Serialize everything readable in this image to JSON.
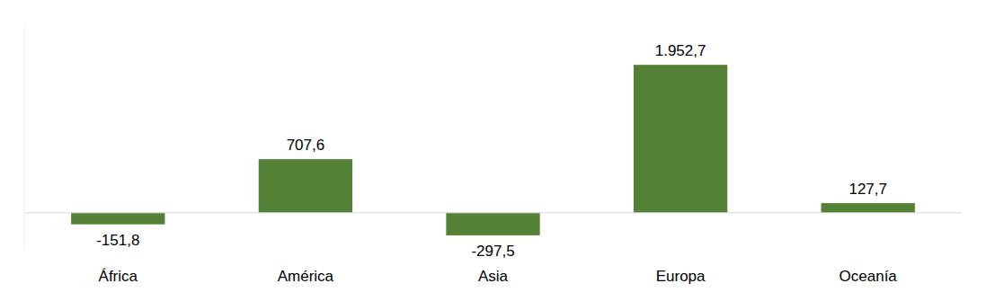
{
  "chart_data": {
    "type": "bar",
    "categories": [
      "África",
      "América",
      "Asia",
      "Europa",
      "Oceanía"
    ],
    "values": [
      -151.8,
      707.6,
      -297.5,
      1952.7,
      127.7
    ],
    "value_labels": [
      "-151,8",
      "707,6",
      "-297,5",
      "1.952,7",
      "127,7"
    ],
    "color": "#538135",
    "ylim": [
      -500,
      2500
    ],
    "grid": false,
    "data_labels": true,
    "tick_labels": "x"
  }
}
